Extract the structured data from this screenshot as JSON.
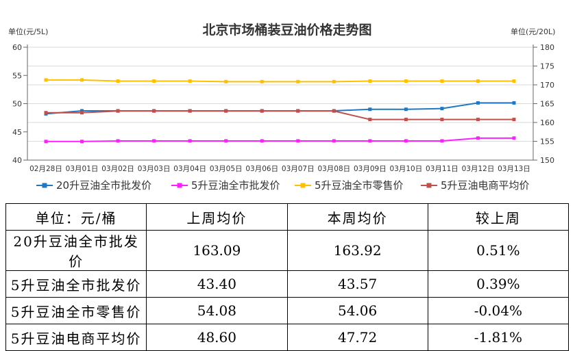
{
  "chart_data": {
    "type": "line",
    "title": "北京市场桶装豆油价格走势图",
    "left_axis_unit": "单位(元/5L)",
    "right_axis_unit": "单位(元/20L)",
    "left_ylim": [
      40,
      60
    ],
    "left_yticks": [
      40,
      45,
      50,
      55,
      60
    ],
    "right_ylim": [
      150,
      180
    ],
    "right_yticks": [
      150,
      155,
      160,
      165,
      170,
      175,
      180
    ],
    "grid": true,
    "legend_position": "bottom",
    "categories": [
      "02月28日",
      "03月01日",
      "03月02日",
      "03月03日",
      "03月04日",
      "03月05日",
      "03月06日",
      "03月07日",
      "03月08日",
      "03月09日",
      "03月10日",
      "03月11日",
      "03月12日",
      "03月13日"
    ],
    "series": [
      {
        "name": "20升豆油全市批发价",
        "axis": "right",
        "color": "#1f78c4",
        "marker": "square",
        "values": [
          162.3,
          163.1,
          163.1,
          163.1,
          163.1,
          163.1,
          163.1,
          163.1,
          163.1,
          163.5,
          163.5,
          163.7,
          165.2,
          165.2
        ]
      },
      {
        "name": "5升豆油全市批发价",
        "axis": "left",
        "color": "#ff1eff",
        "marker": "square",
        "values": [
          43.3,
          43.3,
          43.4,
          43.4,
          43.4,
          43.4,
          43.4,
          43.4,
          43.4,
          43.4,
          43.4,
          43.4,
          43.9,
          43.9
        ]
      },
      {
        "name": "5升豆油全市零售价",
        "axis": "left",
        "color": "#ffc000",
        "marker": "square",
        "values": [
          54.2,
          54.2,
          54.0,
          54.0,
          54.0,
          53.9,
          53.9,
          53.9,
          53.9,
          54.0,
          54.0,
          54.0,
          54.0,
          54.0
        ]
      },
      {
        "name": "5升豆油电商平均价",
        "axis": "left",
        "color": "#c0504d",
        "marker": "square",
        "values": [
          48.4,
          48.4,
          48.7,
          48.7,
          48.7,
          48.7,
          48.7,
          48.7,
          48.7,
          47.2,
          47.2,
          47.2,
          47.2,
          47.2
        ]
      }
    ]
  },
  "table": {
    "headers": [
      "单位：元/桶",
      "上周均价",
      "本周均价",
      "较上周"
    ],
    "rows": [
      [
        "20升豆油全市批发价",
        "163.09",
        "163.92",
        "0.51%"
      ],
      [
        "5升豆油全市批发价",
        "43.40",
        "43.57",
        "0.39%"
      ],
      [
        "5升豆油全市零售价",
        "54.08",
        "54.06",
        "-0.04%"
      ],
      [
        "5升豆油电商平均价",
        "48.60",
        "47.72",
        "-1.81%"
      ]
    ]
  }
}
